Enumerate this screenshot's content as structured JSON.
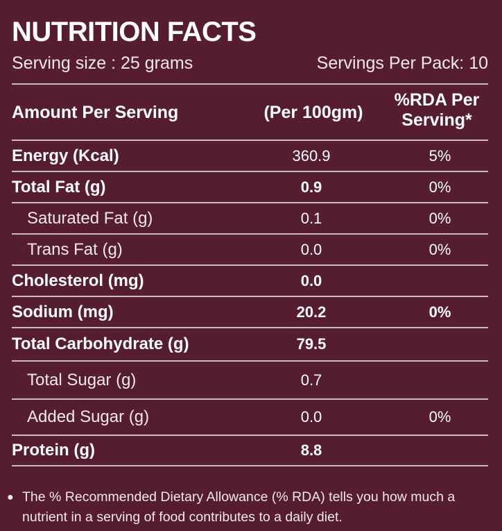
{
  "title": "NUTRITION FACTS",
  "serving_size": "Serving size : 25 grams",
  "servings_per_pack": "Servings Per Pack: 10",
  "header": {
    "amount": "Amount Per Serving",
    "per100": "(Per 100gm)",
    "rda_line1": "%RDA Per",
    "rda_line2": "Serving*"
  },
  "rows": [
    {
      "name": "Energy (Kcal)",
      "value": "360.9",
      "rda": "5%"
    },
    {
      "name": "Total Fat (g)",
      "value": "0.9",
      "rda": "0%"
    },
    {
      "name": "Saturated Fat (g)",
      "value": "0.1",
      "rda": "0%"
    },
    {
      "name": "Trans Fat (g)",
      "value": "0.0",
      "rda": "0%"
    },
    {
      "name": "Cholesterol (mg)",
      "value": "0.0",
      "rda": ""
    },
    {
      "name": "Sodium  (mg)",
      "value": "20.2",
      "rda": "0%"
    },
    {
      "name": "Total Carbohydrate (g)",
      "value": "79.5",
      "rda": ""
    },
    {
      "name": "Total Sugar (g)",
      "value": "0.7",
      "rda": ""
    },
    {
      "name": "Added Sugar (g)",
      "value": "0.0",
      "rda": "0%"
    },
    {
      "name": "Protein (g)",
      "value": "8.8",
      "rda": ""
    }
  ],
  "footnote": "The % Recommended Dietary Allowance (% RDA) tells you how much a nutrient in a serving of food contributes to a daily diet.",
  "colors": {
    "background": "#561d2f",
    "text": "#ffffff",
    "rule": "#cdb9bf"
  }
}
